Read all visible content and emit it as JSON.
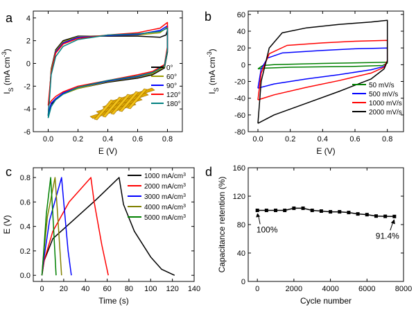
{
  "chart_data": [
    {
      "id": "a",
      "type": "line",
      "panel_label": "a",
      "xlabel": "E (V)",
      "ylabel_main": "I",
      "ylabel_sub": "S",
      "ylabel_unit": " (mA cm",
      "ylabel_sup": "-3",
      "ylabel_close": ")",
      "xlim": [
        -0.1,
        0.9
      ],
      "ylim": [
        -6,
        4.6
      ],
      "xticks": [
        0.0,
        0.2,
        0.4,
        0.6,
        0.8
      ],
      "xtick_labels": [
        "0.0",
        "0.2",
        "0.4",
        "0.6",
        "0.8"
      ],
      "yticks": [
        -6,
        -4,
        -2,
        0,
        2,
        4
      ],
      "ytick_labels": [
        "-6",
        "-4",
        "-2",
        "0",
        "2",
        "4"
      ],
      "legend_position": "right",
      "series": [
        {
          "name": "0°",
          "color": "#000000",
          "upper": [
            [
              0.0,
              -4.6
            ],
            [
              0.02,
              -0.5
            ],
            [
              0.05,
              1.2
            ],
            [
              0.1,
              2.0
            ],
            [
              0.2,
              2.4
            ],
            [
              0.4,
              2.4
            ],
            [
              0.6,
              2.4
            ],
            [
              0.75,
              2.3
            ],
            [
              0.79,
              2.5
            ],
            [
              0.8,
              2.9
            ]
          ],
          "lower": [
            [
              0.8,
              1.0
            ],
            [
              0.78,
              -0.4
            ],
            [
              0.7,
              -1.0
            ],
            [
              0.6,
              -1.3
            ],
            [
              0.4,
              -1.65
            ],
            [
              0.2,
              -2.2
            ],
            [
              0.1,
              -2.7
            ],
            [
              0.05,
              -3.2
            ],
            [
              0.02,
              -3.6
            ],
            [
              0.0,
              -4.6
            ]
          ]
        },
        {
          "name": "60°",
          "color": "#9b9b00",
          "upper": [
            [
              0.0,
              -4.5
            ],
            [
              0.02,
              -0.6
            ],
            [
              0.05,
              1.1
            ],
            [
              0.1,
              1.9
            ],
            [
              0.2,
              2.35
            ],
            [
              0.4,
              2.45
            ],
            [
              0.6,
              2.5
            ],
            [
              0.75,
              2.7
            ],
            [
              0.8,
              3.2
            ]
          ],
          "lower": [
            [
              0.8,
              1.2
            ],
            [
              0.78,
              -0.3
            ],
            [
              0.7,
              -0.9
            ],
            [
              0.6,
              -1.2
            ],
            [
              0.4,
              -1.6
            ],
            [
              0.2,
              -2.2
            ],
            [
              0.1,
              -2.7
            ],
            [
              0.05,
              -3.1
            ],
            [
              0.02,
              -3.5
            ],
            [
              0.0,
              -4.5
            ]
          ]
        },
        {
          "name": "90°",
          "color": "#0000ff",
          "upper": [
            [
              0.0,
              -4.6
            ],
            [
              0.02,
              -0.8
            ],
            [
              0.05,
              1.0
            ],
            [
              0.1,
              1.8
            ],
            [
              0.2,
              2.3
            ],
            [
              0.4,
              2.45
            ],
            [
              0.6,
              2.55
            ],
            [
              0.75,
              2.9
            ],
            [
              0.8,
              3.3
            ]
          ],
          "lower": [
            [
              0.8,
              1.3
            ],
            [
              0.78,
              -0.2
            ],
            [
              0.7,
              -0.8
            ],
            [
              0.6,
              -1.15
            ],
            [
              0.4,
              -1.55
            ],
            [
              0.2,
              -2.1
            ],
            [
              0.1,
              -2.6
            ],
            [
              0.05,
              -3.1
            ],
            [
              0.02,
              -3.5
            ],
            [
              0.0,
              -4.6
            ]
          ]
        },
        {
          "name": "120°",
          "color": "#ff0000",
          "upper": [
            [
              0.0,
              -3.7
            ],
            [
              0.02,
              -0.8
            ],
            [
              0.05,
              0.9
            ],
            [
              0.1,
              1.7
            ],
            [
              0.2,
              2.2
            ],
            [
              0.4,
              2.5
            ],
            [
              0.6,
              2.7
            ],
            [
              0.75,
              3.1
            ],
            [
              0.8,
              3.6
            ]
          ],
          "lower": [
            [
              0.8,
              1.5
            ],
            [
              0.78,
              -0.1
            ],
            [
              0.7,
              -0.7
            ],
            [
              0.6,
              -1.0
            ],
            [
              0.4,
              -1.5
            ],
            [
              0.2,
              -2.0
            ],
            [
              0.1,
              -2.5
            ],
            [
              0.05,
              -2.9
            ],
            [
              0.02,
              -3.3
            ],
            [
              0.0,
              -3.7
            ]
          ]
        },
        {
          "name": "180°",
          "color": "#008080",
          "upper": [
            [
              0.0,
              -4.8
            ],
            [
              0.02,
              -1.0
            ],
            [
              0.05,
              0.6
            ],
            [
              0.1,
              1.5
            ],
            [
              0.2,
              2.1
            ],
            [
              0.4,
              2.5
            ],
            [
              0.6,
              2.6
            ],
            [
              0.75,
              2.8
            ],
            [
              0.8,
              3.1
            ]
          ],
          "lower": [
            [
              0.8,
              1.2
            ],
            [
              0.78,
              -0.2
            ],
            [
              0.7,
              -0.8
            ],
            [
              0.6,
              -1.1
            ],
            [
              0.4,
              -1.5
            ],
            [
              0.2,
              -2.1
            ],
            [
              0.1,
              -2.7
            ],
            [
              0.05,
              -3.2
            ],
            [
              0.02,
              -3.8
            ],
            [
              0.0,
              -4.8
            ]
          ]
        }
      ]
    },
    {
      "id": "b",
      "type": "line",
      "panel_label": "b",
      "xlabel": "E (V)",
      "ylabel_main": "I",
      "ylabel_sub": "S",
      "ylabel_unit": " (mA cm",
      "ylabel_sup": "-3",
      "ylabel_close": ")",
      "xlim": [
        -0.06,
        0.9
      ],
      "ylim": [
        -80,
        64
      ],
      "xticks": [
        0.0,
        0.2,
        0.4,
        0.6,
        0.8
      ],
      "xtick_labels": [
        "0.0",
        "0.2",
        "0.4",
        "0.6",
        "0.8"
      ],
      "yticks": [
        -80,
        -60,
        -40,
        -20,
        0,
        20,
        40,
        60
      ],
      "ytick_labels": [
        "-80",
        "-60",
        "-40",
        "-20",
        "0",
        "20",
        "40",
        "60"
      ],
      "legend_position": "bottom-right",
      "series": [
        {
          "name": "50 mV/s",
          "color": "#008000",
          "upper": [
            [
              0.0,
              -5
            ],
            [
              0.03,
              -1
            ],
            [
              0.1,
              0
            ],
            [
              0.4,
              1.5
            ],
            [
              0.7,
              2.5
            ],
            [
              0.8,
              3
            ]
          ],
          "lower": [
            [
              0.8,
              2
            ],
            [
              0.77,
              -1
            ],
            [
              0.6,
              -2
            ],
            [
              0.4,
              -2.5
            ],
            [
              0.2,
              -3
            ],
            [
              0.05,
              -4
            ],
            [
              0.0,
              -5
            ]
          ]
        },
        {
          "name": "500 mV/s",
          "color": "#0000ff",
          "upper": [
            [
              0.0,
              -28
            ],
            [
              0.02,
              -5
            ],
            [
              0.06,
              8
            ],
            [
              0.15,
              14
            ],
            [
              0.4,
              17
            ],
            [
              0.6,
              19
            ],
            [
              0.8,
              20
            ]
          ],
          "lower": [
            [
              0.8,
              4
            ],
            [
              0.78,
              -2
            ],
            [
              0.7,
              -6
            ],
            [
              0.5,
              -12
            ],
            [
              0.3,
              -17
            ],
            [
              0.1,
              -23
            ],
            [
              0.0,
              -28
            ]
          ]
        },
        {
          "name": "1000 mV/s",
          "color": "#ff0000",
          "upper": [
            [
              0.0,
              -42
            ],
            [
              0.02,
              -10
            ],
            [
              0.07,
              13
            ],
            [
              0.18,
              23
            ],
            [
              0.4,
              26
            ],
            [
              0.6,
              28
            ],
            [
              0.8,
              29
            ]
          ],
          "lower": [
            [
              0.8,
              5
            ],
            [
              0.78,
              -3
            ],
            [
              0.7,
              -10
            ],
            [
              0.5,
              -19
            ],
            [
              0.3,
              -27
            ],
            [
              0.1,
              -36
            ],
            [
              0.0,
              -42
            ]
          ]
        },
        {
          "name": "2000 mV/s",
          "color": "#000000",
          "upper": [
            [
              0.0,
              -70
            ],
            [
              0.02,
              -20
            ],
            [
              0.07,
              20
            ],
            [
              0.15,
              38
            ],
            [
              0.3,
              44
            ],
            [
              0.5,
              48
            ],
            [
              0.7,
              51
            ],
            [
              0.8,
              53
            ]
          ],
          "lower": [
            [
              0.8,
              4
            ],
            [
              0.78,
              -5
            ],
            [
              0.7,
              -17
            ],
            [
              0.5,
              -32
            ],
            [
              0.3,
              -46
            ],
            [
              0.1,
              -60
            ],
            [
              0.0,
              -70
            ]
          ]
        }
      ]
    },
    {
      "id": "c",
      "type": "line",
      "panel_label": "c",
      "xlabel": "Time (s)",
      "ylabel": "E (V)",
      "xlim": [
        -8,
        140
      ],
      "ylim": [
        -0.05,
        0.88
      ],
      "xticks": [
        0,
        20,
        40,
        60,
        80,
        100,
        120,
        140
      ],
      "xtick_labels": [
        "0",
        "20",
        "40",
        "60",
        "80",
        "100",
        "120",
        "140"
      ],
      "yticks": [
        0.0,
        0.2,
        0.4,
        0.6,
        0.8
      ],
      "ytick_labels": [
        "0.0",
        "0.2",
        "0.4",
        "0.6",
        "0.8"
      ],
      "legend_position": "right",
      "series": [
        {
          "name": "1000 mA/cm",
          "unit_sup": "3",
          "color": "#000000",
          "points": [
            [
              0,
              0
            ],
            [
              2,
              0.12
            ],
            [
              10,
              0.3
            ],
            [
              30,
              0.46
            ],
            [
              50,
              0.62
            ],
            [
              71,
              0.8
            ],
            [
              75,
              0.58
            ],
            [
              85,
              0.36
            ],
            [
              100,
              0.15
            ],
            [
              110,
              0.05
            ],
            [
              122,
              0.0
            ]
          ]
        },
        {
          "name": "2000 mA/cm",
          "unit_sup": "3",
          "color": "#ff0000",
          "points": [
            [
              0,
              0
            ],
            [
              2,
              0.12
            ],
            [
              10,
              0.36
            ],
            [
              25,
              0.6
            ],
            [
              45,
              0.8
            ],
            [
              48,
              0.6
            ],
            [
              55,
              0.25
            ],
            [
              61,
              0.0
            ]
          ]
        },
        {
          "name": "3000 mA/cm",
          "unit_sup": "3",
          "color": "#0000ff",
          "points": [
            [
              0,
              0
            ],
            [
              1.5,
              0.12
            ],
            [
              7,
              0.45
            ],
            [
              18,
              0.8
            ],
            [
              20,
              0.6
            ],
            [
              24,
              0.2
            ],
            [
              27,
              0.0
            ]
          ]
        },
        {
          "name": "4000 mA/cm",
          "unit_sup": "3",
          "color": "#808000",
          "points": [
            [
              0,
              0
            ],
            [
              1,
              0.12
            ],
            [
              5,
              0.48
            ],
            [
              12,
              0.8
            ],
            [
              14,
              0.55
            ],
            [
              18,
              0.0
            ]
          ]
        },
        {
          "name": "5000 mA/cm",
          "unit_sup": "3",
          "color": "#008000",
          "points": [
            [
              0,
              0
            ],
            [
              1,
              0.12
            ],
            [
              4,
              0.5
            ],
            [
              8,
              0.8
            ],
            [
              10,
              0.5
            ],
            [
              13,
              0.0
            ]
          ]
        }
      ]
    },
    {
      "id": "d",
      "type": "line",
      "panel_label": "d",
      "xlabel": "Cycle number",
      "ylabel": "Capacitance retention (%)",
      "xlim": [
        -500,
        8000
      ],
      "ylim": [
        0,
        160
      ],
      "xticks": [
        0,
        2000,
        4000,
        6000,
        8000
      ],
      "xtick_labels": [
        "0",
        "2000",
        "4000",
        "6000",
        "8000"
      ],
      "yticks": [
        0,
        40,
        80,
        120,
        160
      ],
      "ytick_labels": [
        "0",
        "40",
        "80",
        "120",
        "160"
      ],
      "series": [
        {
          "color": "#000000",
          "marker": "square",
          "points": [
            [
              0,
              100
            ],
            [
              500,
              100
            ],
            [
              1000,
              100
            ],
            [
              1500,
              100
            ],
            [
              2000,
              103
            ],
            [
              2500,
              103
            ],
            [
              3000,
              100
            ],
            [
              3500,
              99
            ],
            [
              4000,
              98
            ],
            [
              4500,
              98
            ],
            [
              5000,
              97
            ],
            [
              5500,
              95
            ],
            [
              6000,
              94
            ],
            [
              6500,
              92
            ],
            [
              7000,
              91.6
            ],
            [
              7500,
              91.4
            ]
          ]
        }
      ],
      "annotations": [
        {
          "text": "100%",
          "x": 0,
          "y": 100
        },
        {
          "text": "91.4%",
          "x": 7500,
          "y": 91.4
        }
      ]
    }
  ]
}
